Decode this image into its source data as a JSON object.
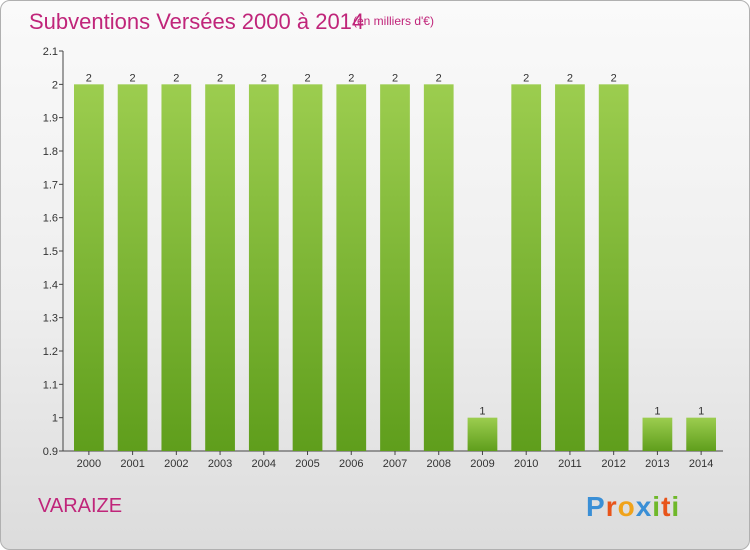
{
  "header": {
    "title": "Subventions Versées 2000 à 2014",
    "unit_note": "(en milliers d'€)"
  },
  "footer": {
    "commune": "VARAIZE",
    "logo_text": "Proxiti"
  },
  "colors": {
    "accent": "#c0257a",
    "bar_top": "#9ccd4f",
    "bar_bottom": "#5f9e1c"
  },
  "chart_data": {
    "type": "bar",
    "categories": [
      "2000",
      "2001",
      "2002",
      "2003",
      "2004",
      "2005",
      "2006",
      "2007",
      "2008",
      "2009",
      "2010",
      "2011",
      "2012",
      "2013",
      "2014"
    ],
    "values": [
      2,
      2,
      2,
      2,
      2,
      2,
      2,
      2,
      2,
      1,
      2,
      2,
      2,
      1,
      1
    ],
    "data_labels": [
      "2",
      "2",
      "2",
      "2",
      "2",
      "2",
      "2",
      "2",
      "2",
      "1",
      "2",
      "2",
      "2",
      "1",
      "1"
    ],
    "ylim": [
      0.9,
      2.1
    ],
    "yticks": [
      0.9,
      1.0,
      1.1,
      1.2,
      1.3,
      1.4,
      1.5,
      1.6,
      1.7,
      1.8,
      1.9,
      2.0,
      2.1
    ],
    "ytick_labels": [
      "0.9",
      "1",
      "1.1",
      "1.2",
      "1.3",
      "1.4",
      "1.5",
      "1.6",
      "1.7",
      "1.8",
      "1.9",
      "2",
      "2.1"
    ],
    "title": "Subventions Versées 2000 à 2014",
    "xlabel": "",
    "ylabel": "",
    "grid": false,
    "legend": "none"
  }
}
